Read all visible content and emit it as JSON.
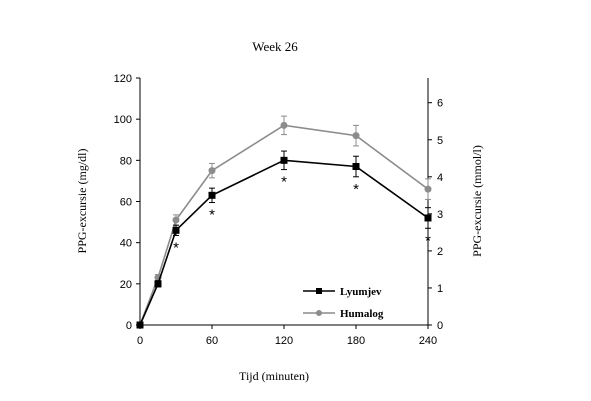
{
  "chart_data": {
    "type": "line",
    "title": "Week 26",
    "xlabel": "Tijd (minuten)",
    "ylabel": "PPG-excursie (mg/dl)",
    "y2label": "PPG-excursie (mmol/l)",
    "x": [
      0,
      15,
      30,
      60,
      120,
      180,
      240
    ],
    "xlim": [
      0,
      240
    ],
    "xticks": [
      "0",
      "60",
      "120",
      "180",
      "240"
    ],
    "ylim": [
      0,
      120
    ],
    "yticks": [
      "0",
      "20",
      "40",
      "60",
      "80",
      "100",
      "120"
    ],
    "y2lim": [
      0,
      6.6667
    ],
    "y2ticks": [
      "0",
      "1",
      "2",
      "3",
      "4",
      "5",
      "6"
    ],
    "grid": false,
    "legend_position": "bottom-right",
    "series": [
      {
        "name": "Lyumjev",
        "color": "#000000",
        "marker": "square",
        "values": [
          0,
          20,
          46,
          63,
          80,
          77,
          52
        ],
        "errors": [
          0,
          1.5,
          2.5,
          3.5,
          4.5,
          5,
          5
        ]
      },
      {
        "name": "Humalog",
        "color": "#8c8c8c",
        "marker": "circle",
        "values": [
          0,
          23,
          51,
          75,
          97,
          92,
          66
        ],
        "errors": [
          0,
          1.5,
          2.5,
          3.5,
          4.5,
          5,
          5
        ]
      }
    ],
    "annotations": [
      {
        "x": 30,
        "text": "*"
      },
      {
        "x": 60,
        "text": "*"
      },
      {
        "x": 120,
        "text": "*"
      },
      {
        "x": 180,
        "text": "*"
      },
      {
        "x": 240,
        "text": "*"
      }
    ]
  }
}
